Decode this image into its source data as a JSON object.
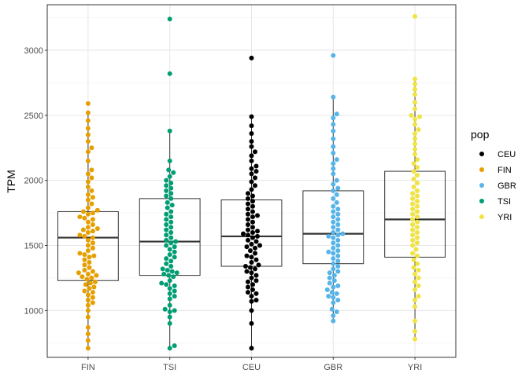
{
  "chart_data": {
    "type": "box-dotplot",
    "ylabel": "TPM",
    "xlabel": "",
    "ylim": [
      640,
      3350
    ],
    "y_major_ticks": [
      1000,
      1500,
      2000,
      2500,
      3000
    ],
    "y_minor_ticks": [
      750,
      1250,
      1750,
      2250,
      2750,
      3250
    ],
    "categories": [
      "FIN",
      "TSI",
      "CEU",
      "GBR",
      "YRI"
    ],
    "grid": true,
    "legend": {
      "title": "pop",
      "position": "right",
      "entries": [
        {
          "label": "CEU",
          "color": "#000000"
        },
        {
          "label": "FIN",
          "color": "#E69F00"
        },
        {
          "label": "GBR",
          "color": "#56B4E9"
        },
        {
          "label": "TSI",
          "color": "#009E73"
        },
        {
          "label": "YRI",
          "color": "#F0E442"
        }
      ]
    },
    "groups": [
      {
        "name": "FIN",
        "color": "#E69F00",
        "box": {
          "q1": 1230,
          "median": 1560,
          "q3": 1760,
          "whisker_low": 710,
          "whisker_high": 2520
        },
        "points": [
          710,
          770,
          820,
          870,
          950,
          1000,
          1040,
          1060,
          1080,
          1100,
          1120,
          1140,
          1150,
          1170,
          1180,
          1200,
          1210,
          1220,
          1240,
          1250,
          1260,
          1270,
          1280,
          1290,
          1300,
          1310,
          1330,
          1350,
          1370,
          1390,
          1410,
          1420,
          1430,
          1440,
          1460,
          1480,
          1500,
          1520,
          1540,
          1560,
          1570,
          1580,
          1600,
          1610,
          1620,
          1630,
          1640,
          1660,
          1680,
          1700,
          1710,
          1720,
          1740,
          1750,
          1760,
          1770,
          1790,
          1820,
          1850,
          1870,
          1890,
          1920,
          1950,
          1990,
          2020,
          2050,
          2080,
          2150,
          2220,
          2250,
          2300,
          2350,
          2400,
          2460,
          2520,
          2590
        ]
      },
      {
        "name": "TSI",
        "color": "#009E73",
        "box": {
          "q1": 1270,
          "median": 1530,
          "q3": 1860,
          "whisker_low": 710,
          "whisker_high": 2380
        },
        "points": [
          710,
          730,
          900,
          950,
          990,
          1000,
          1010,
          1040,
          1090,
          1110,
          1130,
          1150,
          1170,
          1190,
          1200,
          1210,
          1230,
          1260,
          1270,
          1280,
          1290,
          1300,
          1310,
          1320,
          1340,
          1360,
          1380,
          1400,
          1410,
          1430,
          1450,
          1470,
          1490,
          1500,
          1520,
          1530,
          1540,
          1560,
          1580,
          1600,
          1620,
          1640,
          1660,
          1680,
          1700,
          1720,
          1740,
          1760,
          1790,
          1810,
          1830,
          1860,
          1880,
          1900,
          1920,
          1940,
          1960,
          1980,
          2000,
          2030,
          2060,
          2080,
          2150,
          2380,
          2820,
          3240
        ]
      },
      {
        "name": "CEU",
        "color": "#000000",
        "box": {
          "q1": 1340,
          "median": 1570,
          "q3": 1850,
          "whisker_low": 710,
          "whisker_high": 2490
        },
        "points": [
          710,
          900,
          1000,
          1070,
          1080,
          1110,
          1130,
          1140,
          1160,
          1180,
          1200,
          1220,
          1230,
          1250,
          1270,
          1290,
          1300,
          1320,
          1330,
          1340,
          1350,
          1370,
          1390,
          1410,
          1420,
          1440,
          1460,
          1480,
          1490,
          1500,
          1510,
          1530,
          1540,
          1560,
          1570,
          1580,
          1590,
          1600,
          1610,
          1620,
          1640,
          1660,
          1680,
          1700,
          1720,
          1730,
          1740,
          1760,
          1780,
          1800,
          1820,
          1840,
          1860,
          1880,
          1900,
          1930,
          1960,
          1990,
          2020,
          2050,
          2070,
          2090,
          2110,
          2150,
          2190,
          2220,
          2260,
          2300,
          2360,
          2420,
          2490,
          2940
        ]
      },
      {
        "name": "GBR",
        "color": "#56B4E9",
        "box": {
          "q1": 1360,
          "median": 1590,
          "q3": 1920,
          "whisker_low": 920,
          "whisker_high": 2640
        },
        "points": [
          920,
          960,
          990,
          1010,
          1060,
          1080,
          1100,
          1110,
          1130,
          1140,
          1160,
          1180,
          1190,
          1210,
          1230,
          1250,
          1270,
          1290,
          1300,
          1320,
          1340,
          1360,
          1380,
          1400,
          1420,
          1440,
          1450,
          1460,
          1480,
          1500,
          1520,
          1540,
          1560,
          1570,
          1580,
          1590,
          1600,
          1620,
          1640,
          1660,
          1680,
          1700,
          1720,
          1740,
          1760,
          1780,
          1800,
          1830,
          1860,
          1890,
          1920,
          1940,
          1970,
          2000,
          2050,
          2090,
          2130,
          2160,
          2210,
          2260,
          2320,
          2380,
          2430,
          2480,
          2510,
          2640,
          2960
        ]
      },
      {
        "name": "YRI",
        "color": "#F0E442",
        "box": {
          "q1": 1410,
          "median": 1700,
          "q3": 2070,
          "whisker_low": 780,
          "whisker_high": 2780
        },
        "points": [
          780,
          840,
          920,
          1030,
          1080,
          1110,
          1160,
          1190,
          1220,
          1250,
          1280,
          1310,
          1330,
          1360,
          1390,
          1420,
          1440,
          1470,
          1500,
          1520,
          1540,
          1560,
          1580,
          1600,
          1620,
          1640,
          1660,
          1680,
          1700,
          1720,
          1740,
          1760,
          1780,
          1800,
          1820,
          1840,
          1860,
          1880,
          1900,
          1920,
          1950,
          1980,
          2010,
          2040,
          2070,
          2100,
          2130,
          2160,
          2200,
          2240,
          2280,
          2320,
          2360,
          2390,
          2430,
          2470,
          2490,
          2500,
          2550,
          2600,
          2660,
          2700,
          2740,
          2780,
          3260
        ]
      }
    ]
  }
}
